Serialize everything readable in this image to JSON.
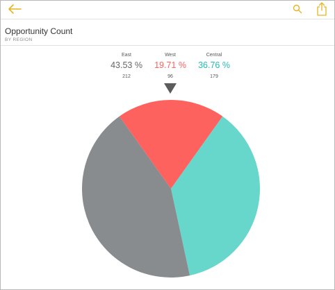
{
  "header": {
    "title": "Opportunity Count",
    "subtitle": "BY REGION"
  },
  "toolbar": {
    "back_icon": "arrow-left-icon",
    "search_icon": "search-icon",
    "share_icon": "share-icon",
    "accent_color": "#e8b321"
  },
  "chart_data": {
    "type": "pie",
    "start_angle_deg": 0,
    "pointer_color": "#5c5c5c",
    "series": [
      {
        "name": "West",
        "percent_label": "19.71 %",
        "value": 96,
        "count_label": "96",
        "color": "#fd625e",
        "label_color": "#fd625e"
      },
      {
        "name": "Central",
        "percent_label": "36.76 %",
        "value": 179,
        "count_label": "179",
        "color": "#67d7cc",
        "label_color": "#22bdb0"
      },
      {
        "name": "East",
        "percent_label": "43.53 %",
        "value": 212,
        "count_label": "212",
        "color": "#888c8e",
        "label_color": "#666666"
      }
    ],
    "legend_order": [
      "East",
      "West",
      "Central"
    ]
  }
}
